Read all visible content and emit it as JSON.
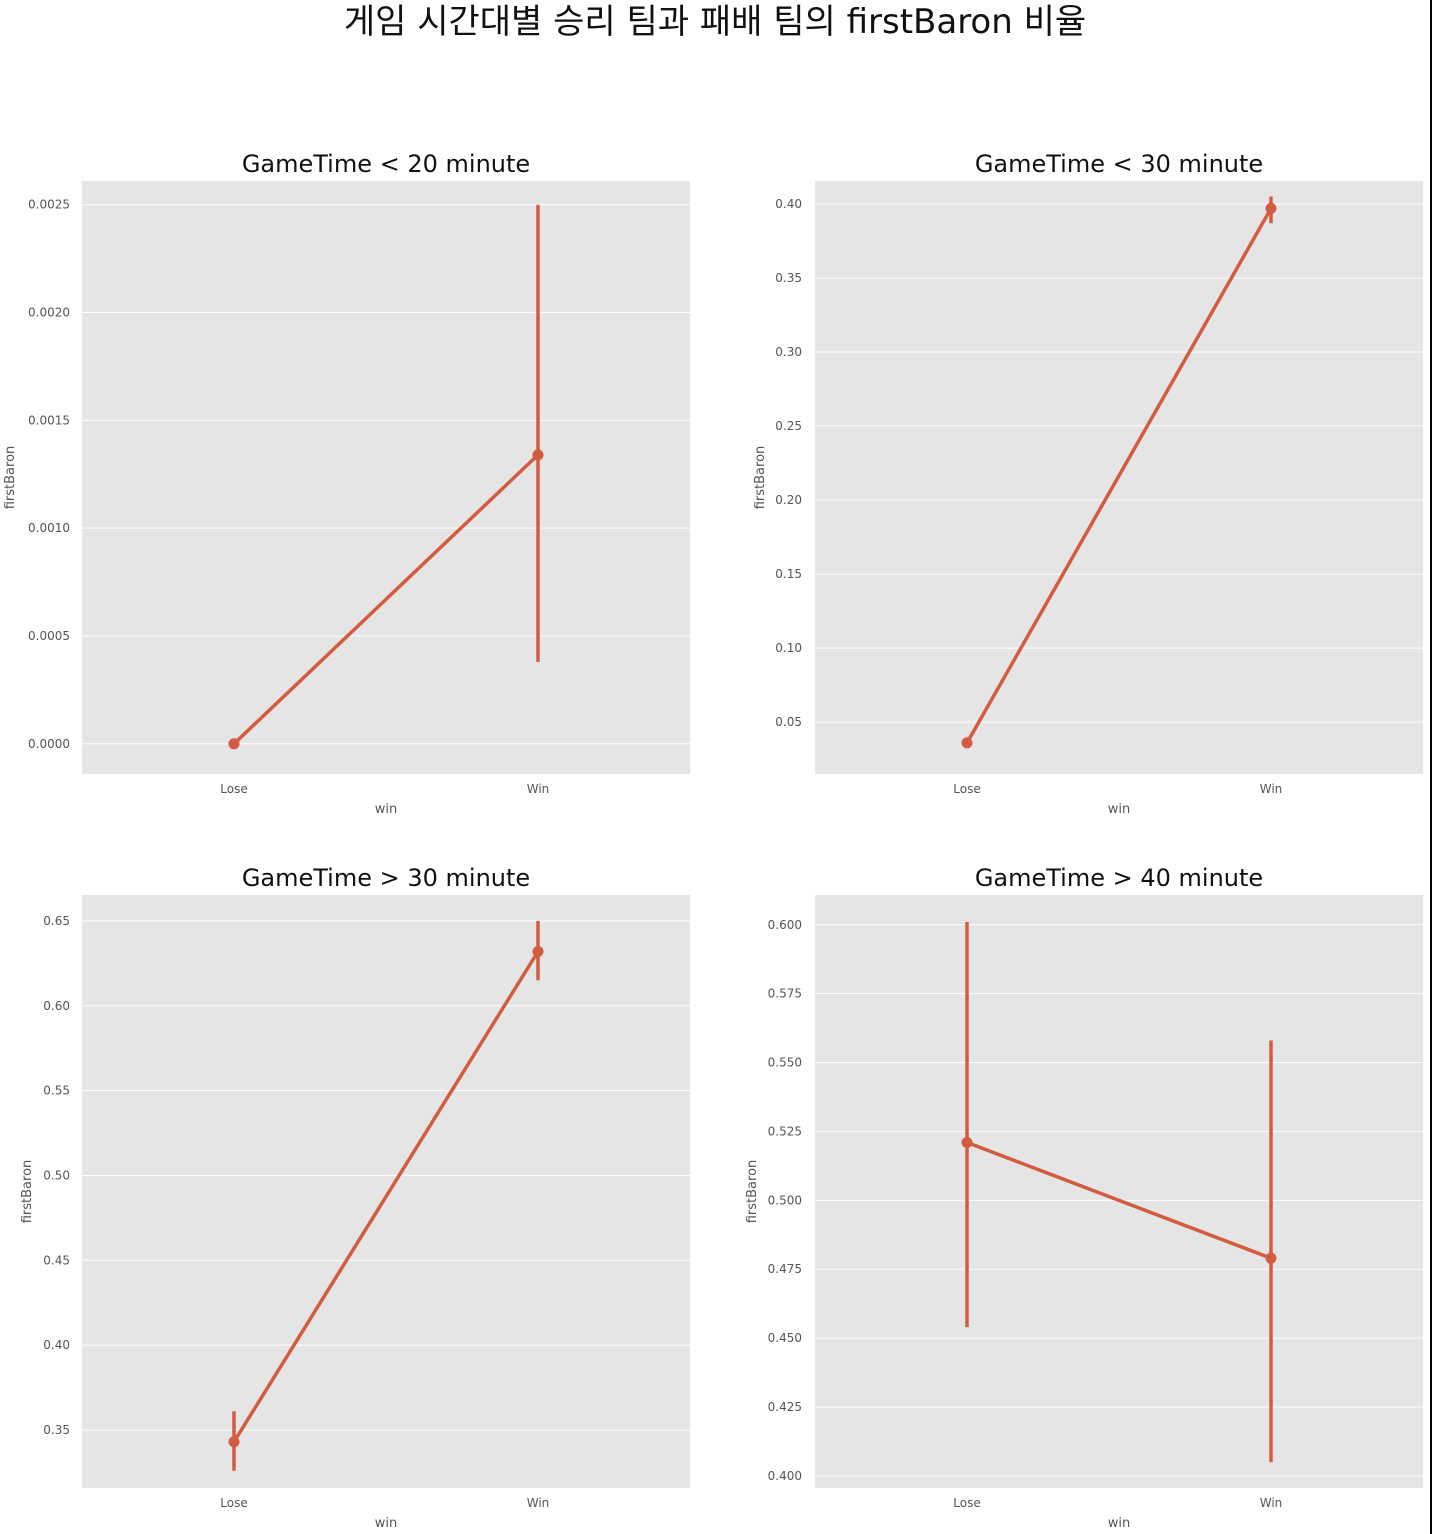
{
  "figure": {
    "suptitle": "게임 시간대별 승리 팀과 패배 팀의 firstBaron 비율"
  },
  "style": {
    "panel_bg": "#e5e5e5",
    "grid": "#ffffff",
    "line_color": "#d35b40"
  },
  "chart_data": [
    {
      "type": "line",
      "title": "GameTime < 20 minute",
      "xlabel": "win",
      "ylabel": "firstBaron",
      "categories": [
        "Lose",
        "Win"
      ],
      "values": [
        0.0,
        0.00134
      ],
      "ci_low": [
        0.0,
        0.00038
      ],
      "ci_high": [
        0.0,
        0.0025
      ],
      "ylim": [
        -0.00014,
        0.00261
      ],
      "yticks": [
        0.0,
        0.0005,
        0.001,
        0.0015,
        0.002,
        0.0025
      ],
      "ytick_labels": [
        "0.0000",
        "0.0005",
        "0.0010",
        "0.0015",
        "0.0020",
        "0.0025"
      ],
      "grid": true
    },
    {
      "type": "line",
      "title": "GameTime < 30 minute",
      "xlabel": "win",
      "ylabel": "firstBaron",
      "categories": [
        "Lose",
        "Win"
      ],
      "values": [
        0.036,
        0.397
      ],
      "ci_low": [
        0.033,
        0.387
      ],
      "ci_high": [
        0.039,
        0.405
      ],
      "ylim": [
        0.015,
        0.4155
      ],
      "yticks": [
        0.05,
        0.1,
        0.15,
        0.2,
        0.25,
        0.3,
        0.35,
        0.4
      ],
      "ytick_labels": [
        "0.05",
        "0.10",
        "0.15",
        "0.20",
        "0.25",
        "0.30",
        "0.35",
        "0.40"
      ],
      "grid": true
    },
    {
      "type": "line",
      "title": "GameTime > 30 minute",
      "xlabel": "win",
      "ylabel": "firstBaron",
      "categories": [
        "Lose",
        "Win"
      ],
      "values": [
        0.343,
        0.632
      ],
      "ci_low": [
        0.326,
        0.615
      ],
      "ci_high": [
        0.361,
        0.65
      ],
      "ylim": [
        0.3158,
        0.6653
      ],
      "yticks": [
        0.35,
        0.4,
        0.45,
        0.5,
        0.55,
        0.6,
        0.65
      ],
      "ytick_labels": [
        "0.35",
        "0.40",
        "0.45",
        "0.50",
        "0.55",
        "0.60",
        "0.65"
      ],
      "grid": true
    },
    {
      "type": "line",
      "title": "GameTime > 40 minute",
      "xlabel": "win",
      "ylabel": "firstBaron",
      "categories": [
        "Lose",
        "Win"
      ],
      "values": [
        0.521,
        0.479
      ],
      "ci_low": [
        0.454,
        0.405
      ],
      "ci_high": [
        0.601,
        0.558
      ],
      "ylim": [
        0.3956,
        0.6108
      ],
      "yticks": [
        0.4,
        0.425,
        0.45,
        0.475,
        0.5,
        0.525,
        0.55,
        0.575,
        0.6
      ],
      "ytick_labels": [
        "0.400",
        "0.425",
        "0.450",
        "0.475",
        "0.500",
        "0.525",
        "0.550",
        "0.575",
        "0.600"
      ],
      "grid": true
    }
  ]
}
